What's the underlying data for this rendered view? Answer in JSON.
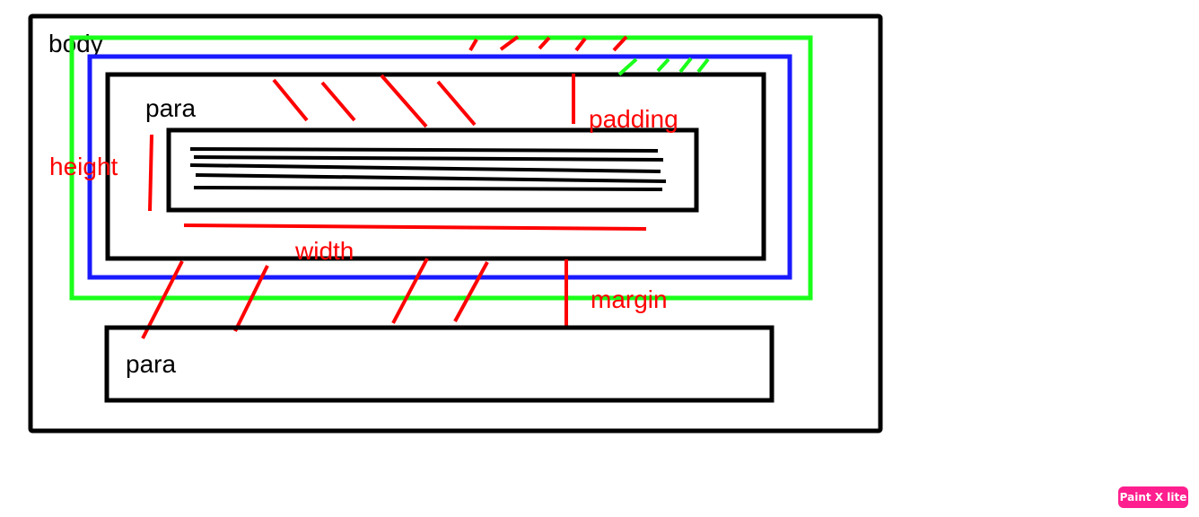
{
  "labels": {
    "body": "body",
    "para_top": "para",
    "para_bottom": "para",
    "padding": "padding",
    "height": "height",
    "width": "width",
    "margin": "margin"
  },
  "watermark": "Paint X lite",
  "colors": {
    "outline": "#000000",
    "border_green": "#1aff1a",
    "border_blue": "#1a1aff",
    "annotation_red": "#ff0000",
    "watermark_bg": "#ff1f8e"
  }
}
